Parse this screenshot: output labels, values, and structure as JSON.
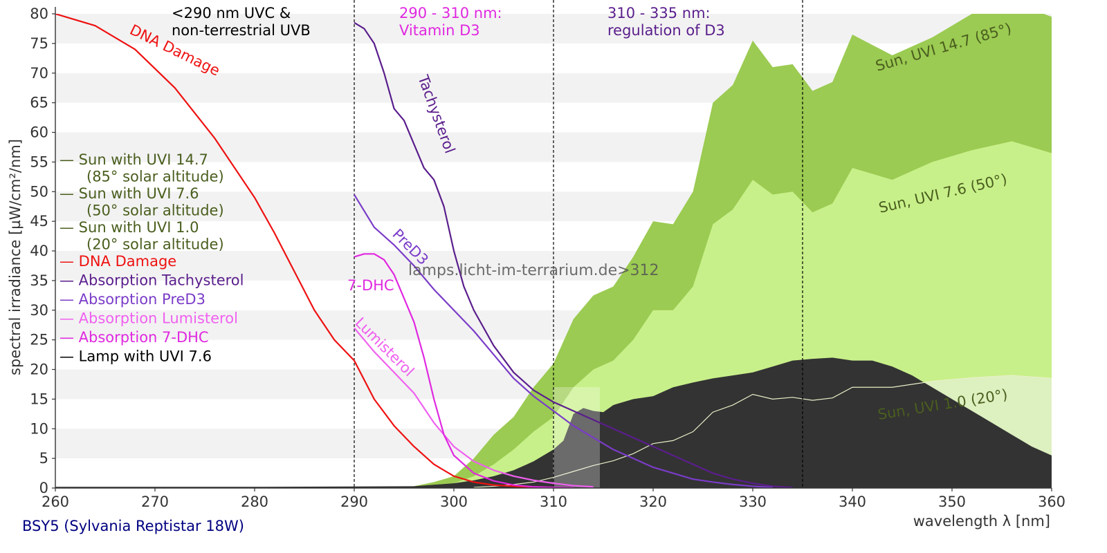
{
  "chart_data": {
    "type": "area",
    "xlabel": "wavelength λ [nm]",
    "ylabel": "spectral irradiance [µW/cm²/nm]",
    "xlim": [
      260,
      360
    ],
    "ylim": [
      0,
      80
    ],
    "x_ticks": [
      "260",
      "270",
      "280",
      "290",
      "300",
      "310",
      "320",
      "330",
      "340",
      "350",
      "360"
    ],
    "y_ticks": [
      "0",
      "5",
      "10",
      "15",
      "20",
      "25",
      "30",
      "35",
      "40",
      "45",
      "50",
      "55",
      "60",
      "65",
      "70",
      "75",
      "80"
    ],
    "grid": "horizontal bands",
    "lamp_name": "BSY5 (Sylvania Reptistar 18W)",
    "watermark": "lamps.licht-im-terrarium.de>312",
    "region_labels": [
      {
        "line1": "<290 nm UVC &",
        "line2": "non-terrestrial UVB",
        "color": "#000000"
      },
      {
        "line1": "290 - 310 nm:",
        "line2": "Vitamin D3",
        "color": "#e028e0"
      },
      {
        "line1": "310 - 335 nm:",
        "line2": "regulation of D3",
        "color": "#5a1e8c"
      }
    ],
    "vlines": [
      290,
      310,
      335
    ],
    "legend": [
      {
        "text": "— Sun with UVI 14.7",
        "sub": "(85° solar altitude)",
        "color": "#4a5e1e"
      },
      {
        "text": "— Sun with UVI 7.6",
        "sub": "(50° solar altitude)",
        "color": "#4a5e1e"
      },
      {
        "text": "— Sun with UVI 1.0",
        "sub": "(20° solar altitude)",
        "color": "#4a5e1e"
      },
      {
        "text": "— DNA Damage",
        "sub": "",
        "color": "#ee1111"
      },
      {
        "text": "— Absorption Tachysterol",
        "sub": "",
        "color": "#5a1e8c"
      },
      {
        "text": "— Absorption PreD3",
        "sub": "",
        "color": "#7a3cc8"
      },
      {
        "text": "— Absorption Lumisterol",
        "sub": "",
        "color": "#f060f0"
      },
      {
        "text": "— Absorption 7-DHC",
        "sub": "",
        "color": "#e028e0"
      },
      {
        "text": "— Lamp with UVI 7.6",
        "sub": "",
        "color": "#000000"
      }
    ],
    "series": [
      {
        "name": "Sun, UVI 14.7 (85°)",
        "kind": "area",
        "color": "#9bcb52",
        "x": [
          296,
          298,
          300,
          302,
          304,
          306,
          308,
          310,
          312,
          314,
          316,
          318,
          320,
          322,
          324,
          326,
          328,
          330,
          332,
          334,
          336,
          338,
          340,
          344,
          348,
          352,
          356,
          360
        ],
        "y": [
          0.3,
          1.0,
          2.0,
          5.0,
          9.0,
          12.0,
          17.0,
          21.0,
          28.5,
          32.5,
          34.0,
          39.0,
          45.0,
          44.5,
          50.0,
          65.0,
          68.0,
          75.5,
          71.0,
          71.5,
          67.0,
          68.5,
          76.5,
          73.0,
          76.0,
          80.0,
          82.0,
          79.5
        ]
      },
      {
        "name": "Sun, UVI 7.6 (50°)",
        "kind": "area",
        "color": "#c8f08a",
        "x": [
          298,
          300,
          302,
          304,
          306,
          308,
          310,
          312,
          314,
          316,
          318,
          320,
          322,
          324,
          326,
          328,
          330,
          332,
          334,
          336,
          338,
          340,
          344,
          348,
          352,
          356,
          360
        ],
        "y": [
          0.2,
          0.8,
          2.0,
          4.0,
          6.5,
          9.5,
          12.0,
          17.0,
          20.0,
          21.5,
          25.0,
          30.0,
          30.0,
          34.0,
          44.5,
          47.0,
          52.0,
          49.5,
          50.0,
          46.5,
          48.0,
          54.0,
          52.0,
          55.0,
          57.0,
          58.5,
          56.5
        ]
      },
      {
        "name": "Sun, UVI 1.0 (20°)",
        "kind": "area",
        "color": "#ddf0c0",
        "x": [
          302,
          304,
          306,
          308,
          310,
          312,
          314,
          316,
          318,
          320,
          322,
          324,
          326,
          328,
          330,
          332,
          334,
          336,
          338,
          340,
          344,
          348,
          352,
          356,
          360
        ],
        "y": [
          0.1,
          0.3,
          0.6,
          1.0,
          1.8,
          2.8,
          3.8,
          4.6,
          5.8,
          7.5,
          8.0,
          9.5,
          12.8,
          14.0,
          15.8,
          15.0,
          15.3,
          14.8,
          15.2,
          17.0,
          17.0,
          18.0,
          18.6,
          19.0,
          18.5
        ]
      },
      {
        "name": "Lamp with UVI 7.6",
        "kind": "area",
        "color": "#333333",
        "x": [
          260,
          280,
          296,
          300,
          302,
          304,
          306,
          308,
          310,
          311,
          312,
          313,
          314,
          315,
          316,
          318,
          320,
          322,
          324,
          326,
          328,
          330,
          332,
          334,
          336,
          338,
          340,
          342,
          344,
          346,
          348,
          350,
          352,
          354,
          356,
          358,
          360
        ],
        "y": [
          0.2,
          0.2,
          0.3,
          0.8,
          1.3,
          2.0,
          3.0,
          4.5,
          6.5,
          8.0,
          12.5,
          13.5,
          13.0,
          12.8,
          14.0,
          15.0,
          15.5,
          17.0,
          17.8,
          18.5,
          19.0,
          19.5,
          20.5,
          21.5,
          21.8,
          22.0,
          21.5,
          21.5,
          20.5,
          19.0,
          17.0,
          15.0,
          13.0,
          11.0,
          9.0,
          7.0,
          5.5
        ]
      },
      {
        "name": "DNA Damage",
        "kind": "line",
        "color": "#ee1111",
        "x": [
          260,
          264,
          268,
          272,
          276,
          280,
          282,
          284,
          286,
          288,
          290,
          292,
          294,
          296,
          298,
          300,
          302,
          304,
          306,
          308,
          310
        ],
        "y": [
          80.0,
          78.0,
          74.0,
          67.5,
          59.0,
          49.0,
          43.0,
          36.5,
          30.0,
          25.0,
          21.5,
          15.0,
          10.5,
          7.0,
          4.0,
          2.0,
          1.0,
          0.5,
          0.3,
          0.15,
          0.05
        ]
      },
      {
        "name": "Absorption Tachysterol",
        "kind": "line",
        "color": "#5a1e8c",
        "x": [
          290,
          291,
          292,
          293,
          294,
          295,
          296,
          297,
          298,
          299,
          300,
          301,
          302,
          304,
          306,
          308,
          310,
          312,
          314,
          316,
          318,
          320,
          322,
          324,
          326,
          328,
          330,
          332,
          334
        ],
        "y": [
          78.5,
          77.5,
          75.0,
          70.0,
          64.0,
          62.0,
          58.0,
          54.0,
          52.0,
          47.5,
          40.0,
          34.0,
          30.0,
          24.0,
          19.5,
          16.5,
          14.5,
          13.0,
          11.5,
          10.0,
          8.5,
          7.0,
          5.5,
          4.0,
          2.5,
          1.5,
          0.8,
          0.3,
          0.1
        ]
      },
      {
        "name": "Absorption PreD3",
        "kind": "line",
        "color": "#7a3cc8",
        "x": [
          290,
          292,
          294,
          296,
          298,
          300,
          302,
          304,
          306,
          308,
          310,
          312,
          314,
          316,
          318,
          320,
          322,
          324,
          326,
          328,
          330,
          332
        ],
        "y": [
          49.5,
          44.0,
          41.0,
          37.5,
          33.5,
          30.0,
          26.5,
          22.5,
          18.5,
          15.5,
          13.0,
          10.5,
          8.5,
          6.5,
          5.0,
          3.5,
          2.5,
          1.5,
          1.0,
          0.6,
          0.3,
          0.1
        ]
      },
      {
        "name": "Absorption Lumisterol",
        "kind": "line",
        "color": "#f060f0",
        "x": [
          290,
          292,
          294,
          296,
          298,
          300,
          302,
          304,
          306,
          308,
          310,
          312,
          314
        ],
        "y": [
          27.0,
          23.0,
          19.5,
          16.0,
          11.0,
          7.0,
          4.5,
          3.0,
          2.0,
          1.3,
          0.8,
          0.4,
          0.2
        ]
      },
      {
        "name": "Absorption 7-DHC",
        "kind": "line",
        "color": "#e028e0",
        "x": [
          290,
          291,
          292,
          293,
          294,
          295,
          296,
          297,
          298,
          299,
          300,
          302,
          304,
          306,
          308,
          310,
          312
        ],
        "y": [
          39.0,
          39.5,
          39.5,
          38.5,
          36.0,
          32.0,
          28.0,
          22.0,
          15.0,
          9.0,
          5.5,
          2.5,
          1.2,
          0.5,
          0.2,
          0.1,
          0.05
        ]
      }
    ],
    "curve_labels": [
      {
        "text": "DNA Damage",
        "color": "#ee1111"
      },
      {
        "text": "Tachysterol",
        "color": "#5a1e8c"
      },
      {
        "text": "PreD3",
        "color": "#7a3cc8"
      },
      {
        "text": "7-DHC",
        "color": "#e028e0"
      },
      {
        "text": "Lumisterol",
        "color": "#f060f0"
      },
      {
        "text": "Sun, UVI 14.7 (85°)",
        "color": "#4a5e1e"
      },
      {
        "text": "Sun, UVI 7.6 (50°)",
        "color": "#4a5e1e"
      },
      {
        "text": "Sun, UVI 1.0 (20°)",
        "color": "#4a5e1e"
      }
    ]
  }
}
